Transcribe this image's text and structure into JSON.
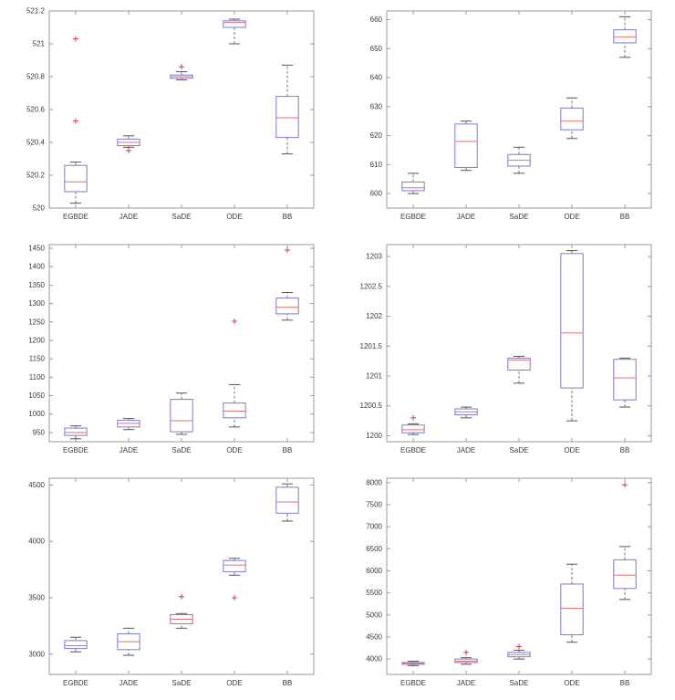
{
  "figure": {
    "background": "#ffffff"
  },
  "style": {
    "box_color": "#7a7ad8",
    "median_color": "#e0726c",
    "whisker_color": "#777777",
    "cap_color": "#555555",
    "outlier_color": "#cc4040",
    "axis_color": "#999999",
    "text_color": "#3a3a3a",
    "tick_font_size": 8
  },
  "chart_data": [
    {
      "type": "boxplot",
      "position": "row1-left",
      "categories": [
        "EGBDE",
        "JADE",
        "SaDE",
        "ODE",
        "BB"
      ],
      "ylim": [
        520,
        521.2
      ],
      "yticks": [
        520,
        520.2,
        520.4,
        520.6,
        520.8,
        521,
        521.2
      ],
      "boxes": [
        {
          "label": "EGBDE",
          "whislo": 520.03,
          "q1": 520.1,
          "med": 520.16,
          "q3": 520.26,
          "whishi": 520.28,
          "outliers": [
            520.53,
            521.03
          ]
        },
        {
          "label": "JADE",
          "whislo": 520.37,
          "q1": 520.38,
          "med": 520.4,
          "q3": 520.42,
          "whishi": 520.44,
          "outliers": [
            520.35
          ]
        },
        {
          "label": "SaDE",
          "whislo": 520.78,
          "q1": 520.79,
          "med": 520.8,
          "q3": 520.81,
          "whishi": 520.83,
          "outliers": [
            520.86
          ]
        },
        {
          "label": "ODE",
          "whislo": 521.0,
          "q1": 521.1,
          "med": 521.13,
          "q3": 521.14,
          "whishi": 521.15,
          "outliers": []
        },
        {
          "label": "BB",
          "whislo": 520.33,
          "q1": 520.43,
          "med": 520.55,
          "q3": 520.68,
          "whishi": 520.87,
          "outliers": []
        }
      ]
    },
    {
      "type": "boxplot",
      "position": "row1-right",
      "categories": [
        "EGBDE",
        "JADE",
        "SaDE",
        "ODE",
        "BB"
      ],
      "ylim": [
        595,
        663
      ],
      "yticks": [
        600,
        610,
        620,
        630,
        640,
        650,
        660
      ],
      "boxes": [
        {
          "label": "EGBDE",
          "whislo": 600,
          "q1": 601,
          "med": 602,
          "q3": 604,
          "whishi": 607,
          "outliers": []
        },
        {
          "label": "JADE",
          "whislo": 608,
          "q1": 609,
          "med": 618,
          "q3": 624,
          "whishi": 625,
          "outliers": []
        },
        {
          "label": "SaDE",
          "whislo": 607,
          "q1": 609.5,
          "med": 611.5,
          "q3": 613.5,
          "whishi": 616,
          "outliers": []
        },
        {
          "label": "ODE",
          "whislo": 619,
          "q1": 622,
          "med": 625,
          "q3": 629.5,
          "whishi": 633,
          "outliers": []
        },
        {
          "label": "BB",
          "whislo": 647,
          "q1": 652,
          "med": 654,
          "q3": 656.5,
          "whishi": 661,
          "outliers": []
        }
      ]
    },
    {
      "type": "boxplot",
      "position": "row2-left",
      "categories": [
        "EGBDE",
        "JADE",
        "SaDE",
        "ODE",
        "BB"
      ],
      "ylim": [
        925,
        1460
      ],
      "yticks": [
        950,
        1000,
        1050,
        1100,
        1150,
        1200,
        1250,
        1300,
        1350,
        1400,
        1450
      ],
      "boxes": [
        {
          "label": "EGBDE",
          "whislo": 933,
          "q1": 942,
          "med": 950,
          "q3": 962,
          "whishi": 968,
          "outliers": []
        },
        {
          "label": "JADE",
          "whislo": 958,
          "q1": 965,
          "med": 975,
          "q3": 983,
          "whishi": 988,
          "outliers": []
        },
        {
          "label": "SaDE",
          "whislo": 945,
          "q1": 952,
          "med": 982,
          "q3": 1040,
          "whishi": 1057,
          "outliers": []
        },
        {
          "label": "ODE",
          "whislo": 965,
          "q1": 990,
          "med": 1008,
          "q3": 1030,
          "whishi": 1080,
          "outliers": [
            1252
          ]
        },
        {
          "label": "BB",
          "whislo": 1255,
          "q1": 1272,
          "med": 1290,
          "q3": 1315,
          "whishi": 1330,
          "outliers": [
            1445
          ]
        }
      ]
    },
    {
      "type": "boxplot",
      "position": "row2-right",
      "categories": [
        "EGBDE",
        "JADE",
        "SaDE",
        "ODE",
        "BB"
      ],
      "ylim": [
        1199.9,
        1203.2
      ],
      "yticks": [
        1200,
        1200.5,
        1201,
        1201.5,
        1202,
        1202.5,
        1203
      ],
      "boxes": [
        {
          "label": "EGBDE",
          "whislo": 1200.02,
          "q1": 1200.05,
          "med": 1200.1,
          "q3": 1200.18,
          "whishi": 1200.2,
          "outliers": [
            1200.3
          ]
        },
        {
          "label": "JADE",
          "whislo": 1200.3,
          "q1": 1200.35,
          "med": 1200.4,
          "q3": 1200.45,
          "whishi": 1200.48,
          "outliers": []
        },
        {
          "label": "SaDE",
          "whislo": 1200.88,
          "q1": 1201.1,
          "med": 1201.27,
          "q3": 1201.3,
          "whishi": 1201.33,
          "outliers": []
        },
        {
          "label": "ODE",
          "whislo": 1200.25,
          "q1": 1200.8,
          "med": 1201.72,
          "q3": 1203.05,
          "whishi": 1203.1,
          "outliers": []
        },
        {
          "label": "BB",
          "whislo": 1200.48,
          "q1": 1200.6,
          "med": 1200.97,
          "q3": 1201.28,
          "whishi": 1201.3,
          "outliers": []
        }
      ]
    },
    {
      "type": "boxplot",
      "position": "row3-left",
      "categories": [
        "EGBDE",
        "JADE",
        "SaDE",
        "ODE",
        "BB"
      ],
      "ylim": [
        2820,
        4560
      ],
      "yticks": [
        3000,
        3500,
        4000,
        4500
      ],
      "boxes": [
        {
          "label": "EGBDE",
          "whislo": 3020,
          "q1": 3050,
          "med": 3075,
          "q3": 3120,
          "whishi": 3150,
          "outliers": []
        },
        {
          "label": "JADE",
          "whislo": 2990,
          "q1": 3040,
          "med": 3110,
          "q3": 3180,
          "whishi": 3230,
          "outliers": []
        },
        {
          "label": "SaDE",
          "whislo": 3230,
          "q1": 3270,
          "med": 3310,
          "q3": 3350,
          "whishi": 3360,
          "outliers": [
            3510
          ]
        },
        {
          "label": "ODE",
          "whislo": 3700,
          "q1": 3730,
          "med": 3790,
          "q3": 3830,
          "whishi": 3850,
          "outliers": [
            3500
          ]
        },
        {
          "label": "BB",
          "whislo": 4180,
          "q1": 4250,
          "med": 4350,
          "q3": 4480,
          "whishi": 4510,
          "outliers": []
        }
      ]
    },
    {
      "type": "boxplot",
      "position": "row3-right",
      "categories": [
        "EGBDE",
        "JADE",
        "SaDE",
        "ODE",
        "BB"
      ],
      "ylim": [
        3650,
        8100
      ],
      "yticks": [
        4000,
        4500,
        5000,
        5500,
        6000,
        6500,
        7000,
        7500,
        8000
      ],
      "boxes": [
        {
          "label": "EGBDE",
          "whislo": 3850,
          "q1": 3880,
          "med": 3900,
          "q3": 3920,
          "whishi": 3950,
          "outliers": []
        },
        {
          "label": "JADE",
          "whislo": 3880,
          "q1": 3920,
          "med": 3950,
          "q3": 4000,
          "whishi": 4030,
          "outliers": [
            4150
          ]
        },
        {
          "label": "SaDE",
          "whislo": 4000,
          "q1": 4050,
          "med": 4100,
          "q3": 4150,
          "whishi": 4200,
          "outliers": [
            4280
          ]
        },
        {
          "label": "ODE",
          "whislo": 4380,
          "q1": 4550,
          "med": 5150,
          "q3": 5700,
          "whishi": 6150,
          "outliers": []
        },
        {
          "label": "BB",
          "whislo": 5350,
          "q1": 5600,
          "med": 5900,
          "q3": 6250,
          "whishi": 6550,
          "outliers": [
            7950
          ]
        }
      ]
    }
  ]
}
